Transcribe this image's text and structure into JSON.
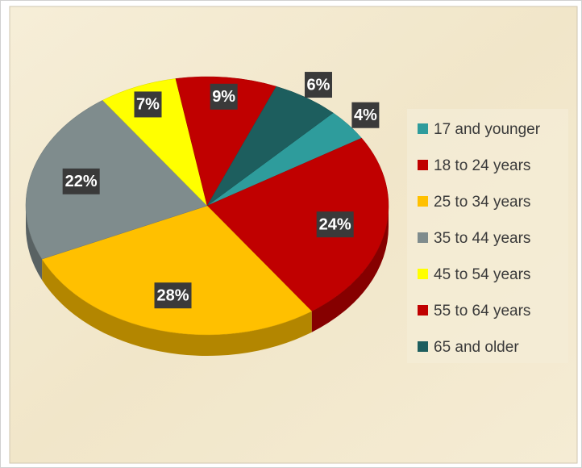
{
  "chart_data": {
    "type": "pie",
    "categories": [
      "17 and younger",
      "18 to 24 years",
      "25 to 34 years",
      "35 to 44 years",
      "45 to 54 years",
      "55 to 64 years",
      "65 and older"
    ],
    "values": [
      4,
      24,
      28,
      22,
      7,
      9,
      6
    ],
    "value_labels": [
      "4%",
      "24%",
      "28%",
      "22%",
      "7%",
      "9%",
      "6%"
    ],
    "colors": [
      "#2e9c9c",
      "#c00000",
      "#ffc000",
      "#7f8c8d",
      "#ffff00",
      "#c00000",
      "#1d5e5e"
    ],
    "legend": "right"
  }
}
